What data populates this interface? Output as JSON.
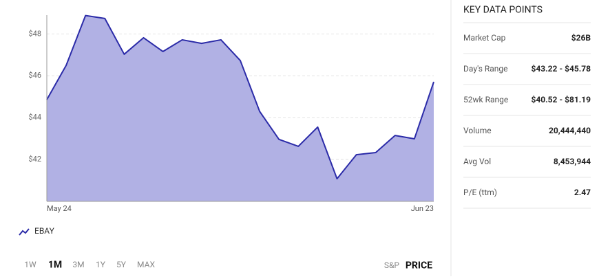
{
  "chart_data": {
    "type": "area",
    "categories": [
      "May 24",
      null,
      null,
      null,
      null,
      null,
      null,
      null,
      null,
      null,
      null,
      null,
      null,
      null,
      null,
      null,
      null,
      null,
      null,
      null,
      "Jun 23"
    ],
    "series": [
      {
        "name": "EBAY",
        "color": "#2b2ba8",
        "fill": "#b1b1e4",
        "values": [
          44.86,
          46.5,
          48.88,
          48.74,
          47.03,
          47.82,
          47.16,
          47.72,
          47.55,
          47.72,
          46.73,
          44.3,
          42.96,
          42.63,
          43.55,
          41.08,
          42.23,
          42.33,
          43.15,
          42.99,
          45.71
        ]
      }
    ],
    "ylim": [
      40,
      48.9
    ],
    "yticks": [
      {
        "value": 42,
        "label": "$42"
      },
      {
        "value": 44,
        "label": "$44"
      },
      {
        "value": 46,
        "label": "$46"
      },
      {
        "value": 48,
        "label": "$48"
      }
    ],
    "grid": true
  },
  "range_buttons": {
    "options": [
      "1W",
      "1M",
      "3M",
      "1Y",
      "5Y",
      "MAX"
    ],
    "selected": 1
  },
  "view_toggle": {
    "options": [
      "S&P",
      "PRICE"
    ],
    "selected": 1
  },
  "key_data": {
    "title": "KEY DATA POINTS",
    "rows": [
      [
        "Market Cap",
        "$26B"
      ],
      [
        "Day's Range",
        "$43.22 - $45.78"
      ],
      [
        "52wk Range",
        "$40.52 - $81.19"
      ],
      [
        "Volume",
        "20,444,440"
      ],
      [
        "Avg Vol",
        "8,453,944"
      ],
      [
        "P/E (ttm)",
        "2.47"
      ]
    ]
  }
}
